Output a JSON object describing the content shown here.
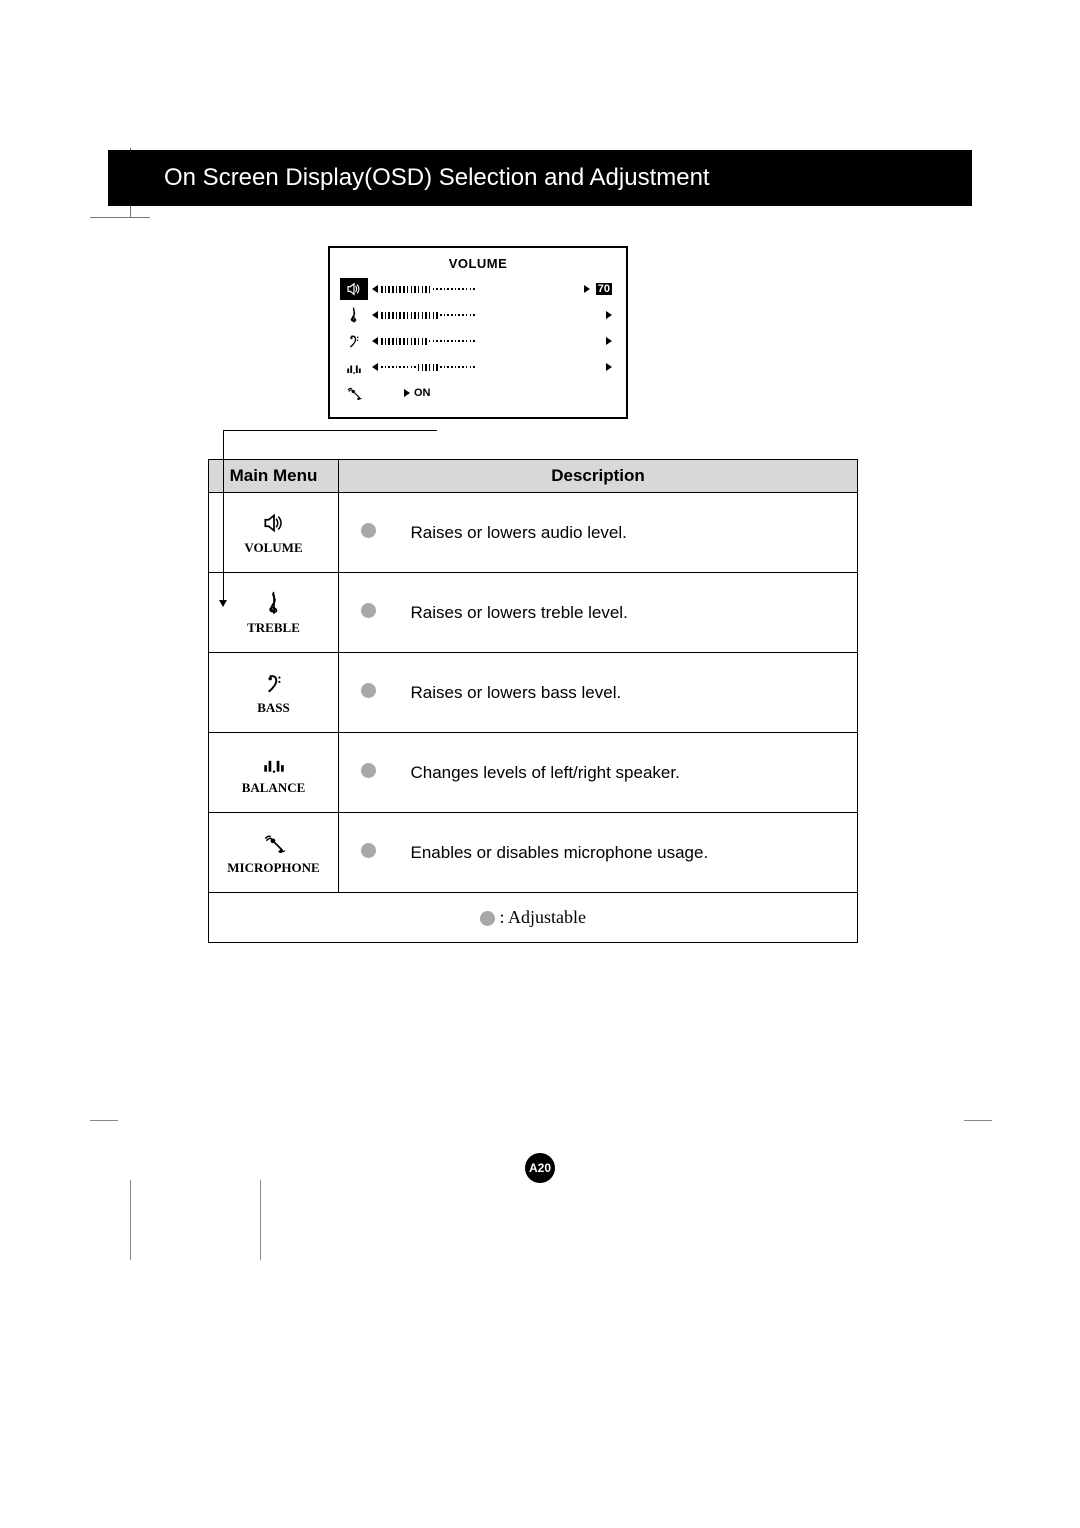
{
  "header": {
    "title": "On Screen Display(OSD) Selection and Adjustment"
  },
  "osd": {
    "title": "VOLUME",
    "value": "70",
    "on_label": "ON",
    "rows": [
      {
        "icon": "volume",
        "active": true,
        "filled": 14,
        "empty": 12,
        "show_value": true
      },
      {
        "icon": "treble",
        "active": false,
        "filled": 16,
        "empty": 10,
        "show_value": false
      },
      {
        "icon": "bass",
        "active": false,
        "filled": 13,
        "empty": 13,
        "show_value": false
      },
      {
        "icon": "balance",
        "active": false,
        "pre_dots": 10,
        "filled": 6,
        "post_dots": 10,
        "show_value": false
      },
      {
        "icon": "microphone",
        "active": false,
        "on_row": true
      }
    ]
  },
  "table": {
    "col_main": "Main Menu",
    "col_desc": "Description",
    "rows": [
      {
        "icon": "volume",
        "label": "VOLUME",
        "desc": "Raises or lowers audio level."
      },
      {
        "icon": "treble",
        "label": "TREBLE",
        "desc": "Raises or lowers treble level."
      },
      {
        "icon": "bass",
        "label": "BASS",
        "desc": "Raises or lowers bass level."
      },
      {
        "icon": "balance",
        "label": "BALANCE",
        "desc": "Changes levels of left/right speaker."
      },
      {
        "icon": "microphone",
        "label": "MICROPHONE",
        "desc": "Enables or disables microphone usage."
      }
    ],
    "legend": ": Adjustable"
  },
  "page_number": "A20"
}
